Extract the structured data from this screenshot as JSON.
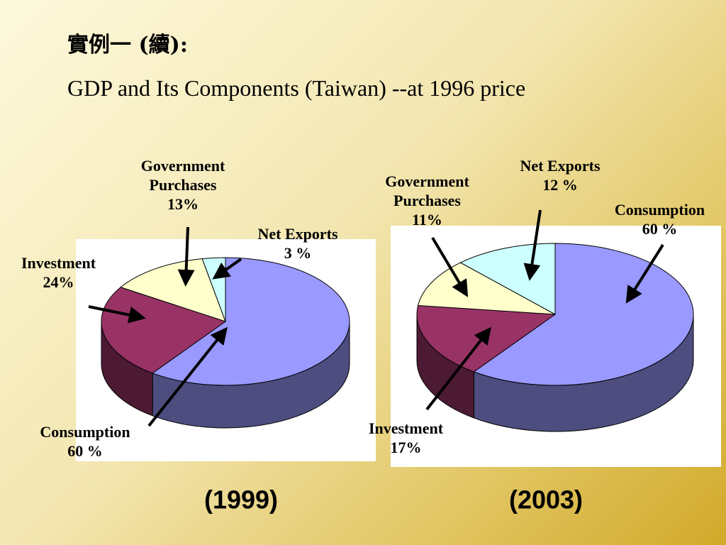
{
  "title": "實例一 (續):",
  "subtitle": "GDP and Its Components (Taiwan) --at 1996 price",
  "chart_data": [
    {
      "type": "pie",
      "title": "(1999)",
      "categories": [
        "Consumption",
        "Investment",
        "Government Purchases",
        "Net Exports"
      ],
      "values": [
        60,
        24,
        13,
        3
      ],
      "value_labels": [
        "60 %",
        "24%",
        "13%",
        "3 %"
      ],
      "colors": [
        "#9999ff",
        "#993366",
        "#ffffcc",
        "#ccffff"
      ]
    },
    {
      "type": "pie",
      "title": "(2003)",
      "categories": [
        "Consumption",
        "Investment",
        "Government Purchases",
        "Net Exports"
      ],
      "values": [
        60,
        17,
        11,
        12
      ],
      "value_labels": [
        "60 %",
        "17%",
        "11%",
        "12 %"
      ],
      "colors": [
        "#9999ff",
        "#993366",
        "#ffffcc",
        "#ccffff"
      ]
    }
  ]
}
